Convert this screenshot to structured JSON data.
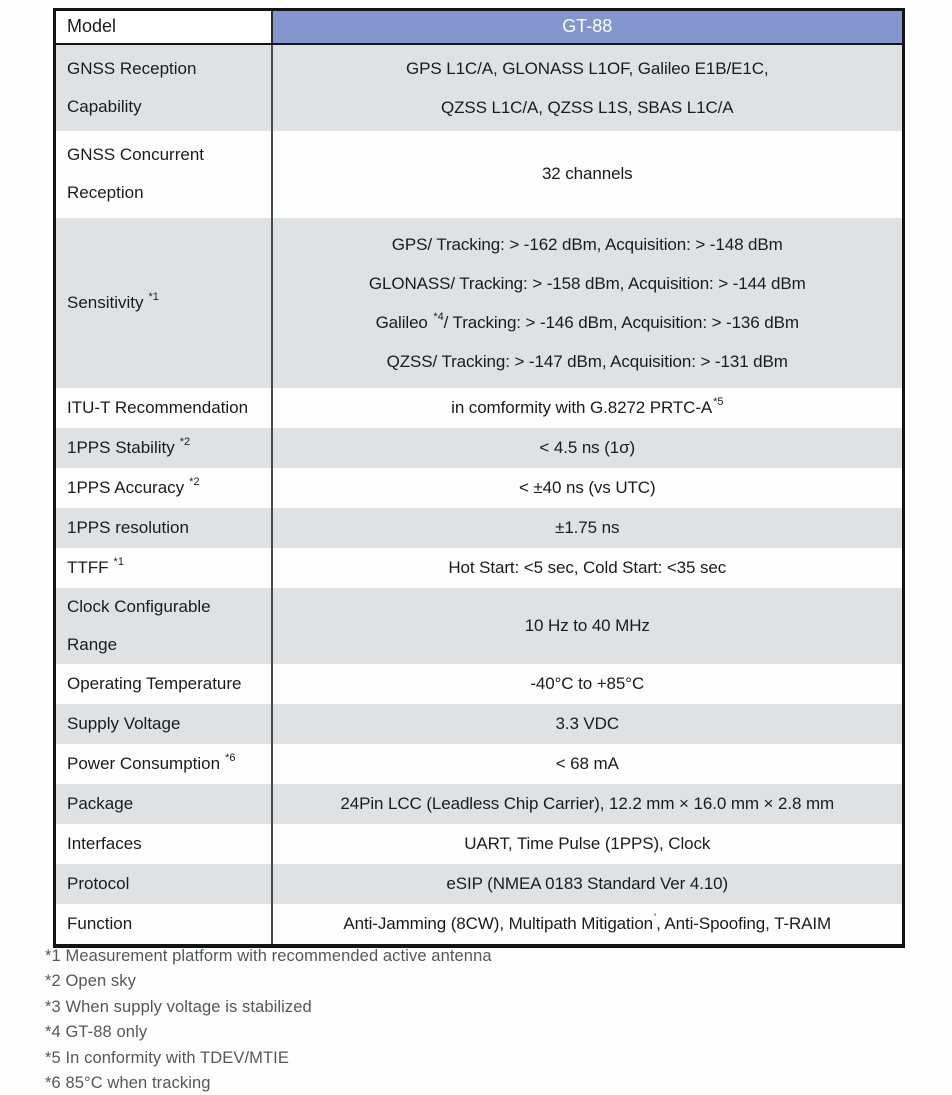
{
  "table": {
    "header": {
      "model_label": "Model",
      "product_name": "GT-88"
    },
    "rows": [
      {
        "label": "GNSS Reception Capability",
        "value_lines": [
          {
            "text": "GPS L1C/A, GLONASS L1OF, Galileo E1B/E1C,"
          },
          {
            "text": "QZSS L1C/A, QZSS L1S, SBAS L1C/A"
          }
        ]
      },
      {
        "label": "GNSS Concurrent Reception",
        "value": "32 channels"
      },
      {
        "label": "Sensitivity",
        "label_sup": "*1",
        "value_lines": [
          {
            "text": "GPS/ Tracking: > -162 dBm, Acquisition: > -148 dBm"
          },
          {
            "text": "GLONASS/ Tracking: > -158 dBm, Acquisition: > -144 dBm"
          },
          {
            "pre": "Galileo ",
            "sup": "*4",
            "post": "/ Tracking: > -146 dBm, Acquisition: > -136 dBm"
          },
          {
            "text": "QZSS/ Tracking: > -147 dBm, Acquisition: > -131 dBm"
          }
        ]
      },
      {
        "label": "ITU-T Recommendation",
        "value": "in comformity with G.8272 PRTC-A",
        "value_sup": "*5"
      },
      {
        "label": "1PPS Stability",
        "label_sup": "*2",
        "value": "< 4.5 ns (1σ)"
      },
      {
        "label": "1PPS Accuracy",
        "label_sup": "*2",
        "value": "< ±40 ns (vs UTC)"
      },
      {
        "label": "1PPS resolution",
        "value": "±1.75 ns"
      },
      {
        "label": "TTFF",
        "label_sup": "*1",
        "value": "Hot Start: <5 sec, Cold Start: <35 sec"
      },
      {
        "label": "Clock Configurable Range",
        "value": "10 Hz to 40 MHz"
      },
      {
        "label": "Operating Temperature",
        "value": "-40°C to +85°C"
      },
      {
        "label": "Supply Voltage",
        "value": "3.3 VDC"
      },
      {
        "label": "Power Consumption",
        "label_sup": "*6",
        "value": "< 68 mA"
      },
      {
        "label": "Package",
        "value": "24Pin LCC (Leadless Chip Carrier), 12.2 mm × 16.0 mm × 2.8 mm"
      },
      {
        "label": "Interfaces",
        "value": "UART, Time Pulse (1PPS), Clock"
      },
      {
        "label": "Protocol",
        "value": "eSIP (NMEA 0183 Standard Ver 4.10)"
      },
      {
        "label": "Function",
        "value_pre": "Anti-Jamming (8CW), Multipath Mitigation",
        "value_sup": "'",
        "value_post": ", Anti-Spoofing, T-RAIM"
      }
    ]
  },
  "footnotes": [
    "*1 Measurement platform with recommended active antenna",
    "*2 Open sky",
    "*3 When supply voltage is stabilized",
    "*4 GT-88 only",
    "*5 In conformity with TDEV/MTIE",
    "*6 85°C when tracking"
  ],
  "colors": {
    "header_blue": "#8296CD",
    "header_text": "#FFFFFF",
    "row_gray": "#E0E1E3",
    "row_white": "#FFFFFF",
    "border_black": "#141414",
    "column_divider": "#4A4A4C",
    "body_text": "#1B1B1B",
    "footnote_gray": "#55565A"
  }
}
